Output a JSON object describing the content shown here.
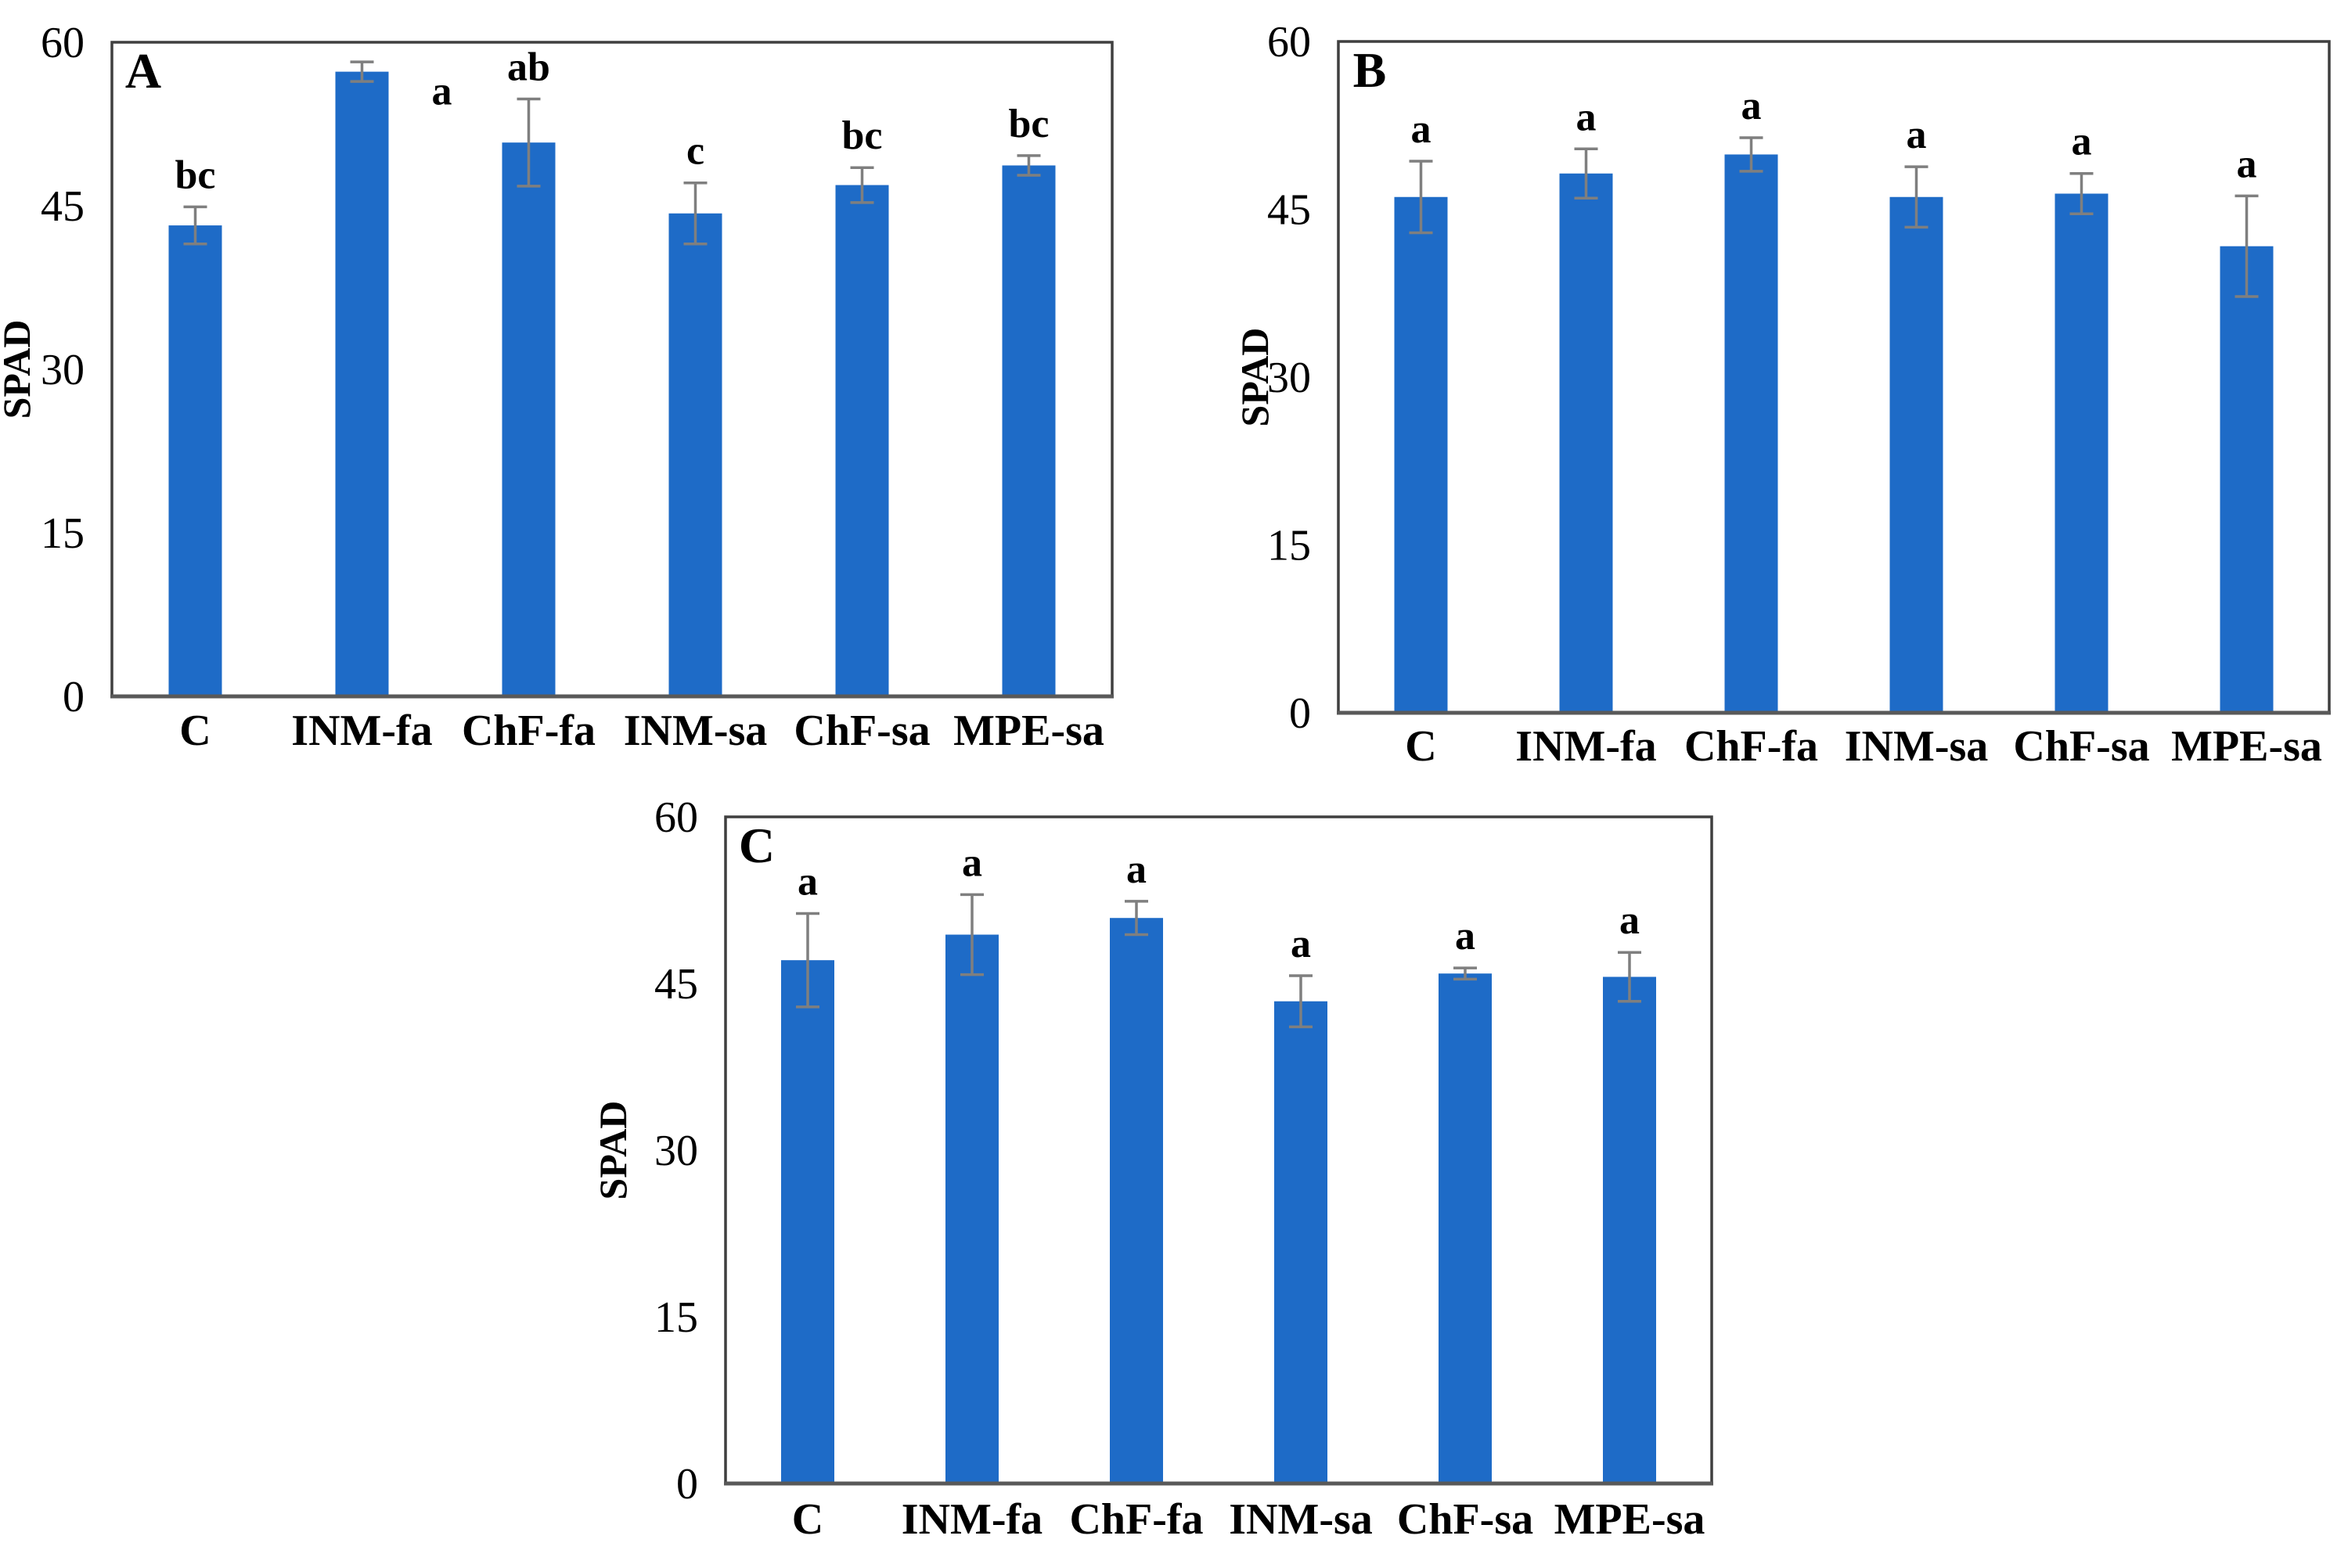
{
  "figure": {
    "background": "#ffffff",
    "description": "Three-panel bar chart figure of SPAD values under six treatments"
  },
  "colors": {
    "bar_fill": "#1E6BC7",
    "error_bar": "#7F7F7F",
    "plot_border": "#3F3F3F",
    "x_axis_line": "#595959",
    "text": "#000000"
  },
  "chart_data": [
    {
      "panel_label": "A",
      "type": "bar",
      "ylabel": "SPAD",
      "xlabel": "",
      "ylim": [
        0,
        60
      ],
      "yticks": [
        0,
        15,
        30,
        45,
        60
      ],
      "grid": false,
      "legend": "none",
      "categories": [
        "C",
        "INM-fa",
        "ChF-fa",
        "INM-sa",
        "ChF-sa",
        "MPE-sa"
      ],
      "values": [
        43.2,
        57.3,
        50.8,
        44.3,
        46.9,
        48.7
      ],
      "errors": [
        1.7,
        0.9,
        4.0,
        2.8,
        1.6,
        0.9
      ],
      "letters": [
        "bc",
        "a",
        "ab",
        "c",
        "bc",
        "bc"
      ]
    },
    {
      "panel_label": "B",
      "type": "bar",
      "ylabel": "SPAD",
      "xlabel": "",
      "ylim": [
        0,
        60
      ],
      "yticks": [
        0,
        15,
        30,
        45,
        60
      ],
      "grid": false,
      "legend": "none",
      "categories": [
        "C",
        "INM-fa",
        "ChF-fa",
        "INM-sa",
        "ChF-sa",
        "MPE-sa"
      ],
      "values": [
        46.1,
        48.2,
        49.9,
        46.1,
        46.4,
        41.7
      ],
      "errors": [
        3.2,
        2.2,
        1.5,
        2.7,
        1.8,
        4.5
      ],
      "letters": [
        "a",
        "a",
        "a",
        "a",
        "a",
        "a"
      ]
    },
    {
      "panel_label": "C",
      "type": "bar",
      "ylabel": "SPAD",
      "xlabel": "",
      "ylim": [
        0,
        60
      ],
      "yticks": [
        0,
        15,
        30,
        45,
        60
      ],
      "grid": false,
      "legend": "none",
      "categories": [
        "C",
        "INM-fa",
        "ChF-fa",
        "INM-sa",
        "ChF-sa",
        "MPE-sa"
      ],
      "values": [
        47.1,
        49.4,
        50.9,
        43.4,
        45.9,
        45.6
      ],
      "errors": [
        4.2,
        3.6,
        1.5,
        2.3,
        0.5,
        2.2
      ],
      "letters": [
        "a",
        "a",
        "a",
        "a",
        "a",
        "a"
      ]
    }
  ]
}
